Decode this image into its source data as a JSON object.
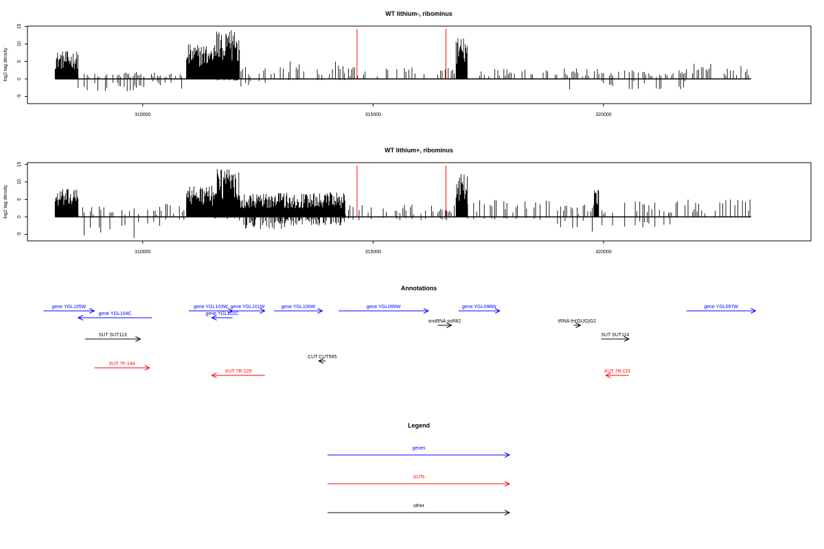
{
  "chart_data": [
    {
      "type": "bar",
      "title": "WT lithium-, ribominus",
      "xlabel": "",
      "ylabel": "log2 tag density",
      "xlim": [
        307500,
        324500
      ],
      "ylim": [
        -7,
        15
      ],
      "x_ticks": [
        "310000",
        "315000",
        "320000"
      ],
      "y_ticks": [
        "15",
        "10",
        "5",
        "0",
        "-5"
      ],
      "marker_positions": [
        314650,
        316580
      ],
      "marker_color": "#ff0000",
      "bar_color": "#000000",
      "density_regions": [
        {
          "start": 308100,
          "end": 308600,
          "max": 8.0,
          "min": 0
        },
        {
          "start": 308600,
          "end": 309600,
          "max": 1.5,
          "min": -4.0
        },
        {
          "start": 309600,
          "end": 310900,
          "max": 2.0,
          "min": -3.5
        },
        {
          "start": 310950,
          "end": 311550,
          "max": 10.0,
          "min": 0
        },
        {
          "start": 311550,
          "end": 312100,
          "max": 14.0,
          "min": -0.5
        },
        {
          "start": 312100,
          "end": 313100,
          "max": 3.5,
          "min": -3.0
        },
        {
          "start": 313100,
          "end": 314400,
          "max": 5.0,
          "min": -0.5
        },
        {
          "start": 314400,
          "end": 316800,
          "max": 3.5,
          "min": 0
        },
        {
          "start": 316800,
          "end": 317050,
          "max": 12.0,
          "min": 0
        },
        {
          "start": 317050,
          "end": 319700,
          "max": 3.0,
          "min": 0
        },
        {
          "start": 319100,
          "end": 319300,
          "max": 0.5,
          "min": -3.0
        },
        {
          "start": 319800,
          "end": 319900,
          "max": 5.0,
          "min": 0
        },
        {
          "start": 319900,
          "end": 321800,
          "max": 2.5,
          "min": -3.0
        },
        {
          "start": 321800,
          "end": 323200,
          "max": 4.5,
          "min": 0
        }
      ]
    },
    {
      "type": "bar",
      "title": "WT lithium+, ribominus",
      "xlabel": "",
      "ylabel": "log2 tag density",
      "xlim": [
        307500,
        324500
      ],
      "ylim": [
        -7,
        15
      ],
      "x_ticks": [
        "310000",
        "315000",
        "320000"
      ],
      "y_ticks": [
        "15",
        "10",
        "5",
        "0",
        "-5"
      ],
      "marker_positions": [
        314650,
        316580
      ],
      "marker_color": "#ff0000",
      "bar_color": "#000000",
      "density_regions": [
        {
          "start": 308100,
          "end": 308600,
          "max": 8.0,
          "min": 0
        },
        {
          "start": 308600,
          "end": 310500,
          "max": 3.0,
          "min": -6.0
        },
        {
          "start": 310500,
          "end": 310900,
          "max": 4.0,
          "min": -1.0
        },
        {
          "start": 310950,
          "end": 311550,
          "max": 9.0,
          "min": 0
        },
        {
          "start": 311550,
          "end": 312100,
          "max": 14.0,
          "min": -0.5
        },
        {
          "start": 312100,
          "end": 313100,
          "max": 7.0,
          "min": -3.5
        },
        {
          "start": 313100,
          "end": 314400,
          "max": 7.0,
          "min": -2.5
        },
        {
          "start": 314400,
          "end": 316800,
          "max": 3.5,
          "min": -1.0
        },
        {
          "start": 316800,
          "end": 317050,
          "max": 12.5,
          "min": 0
        },
        {
          "start": 317050,
          "end": 319000,
          "max": 5.0,
          "min": -1.0
        },
        {
          "start": 319000,
          "end": 319800,
          "max": 3.5,
          "min": -5.0
        },
        {
          "start": 319800,
          "end": 319900,
          "max": 8.0,
          "min": 0
        },
        {
          "start": 319900,
          "end": 321800,
          "max": 4.5,
          "min": -3.0
        },
        {
          "start": 321800,
          "end": 323200,
          "max": 5.0,
          "min": 0
        }
      ]
    },
    {
      "type": "annotation-track",
      "title": "Annotations",
      "xlim": [
        307500,
        324500
      ],
      "features": [
        {
          "label": "gene YGL105W",
          "start": 307850,
          "end": 308950,
          "strand": "+",
          "color": "#0000ff",
          "row": 0
        },
        {
          "label": "gene YGL104C",
          "start": 308600,
          "end": 310200,
          "strand": "-",
          "color": "#0000ff",
          "row": 1
        },
        {
          "label": "gene YGL103W",
          "start": 311000,
          "end": 311950,
          "strand": "+",
          "color": "#0000ff",
          "row": 0
        },
        {
          "label": "gene YGL102C",
          "start": 311500,
          "end": 311950,
          "strand": "-",
          "color": "#0000ff",
          "row": 1
        },
        {
          "label": "gene YGL101W",
          "start": 311900,
          "end": 312650,
          "strand": "+",
          "color": "#0000ff",
          "row": 0
        },
        {
          "label": "gene YGL100W",
          "start": 312850,
          "end": 313900,
          "strand": "+",
          "color": "#0000ff",
          "row": 0
        },
        {
          "label": "gene YGL099W",
          "start": 314250,
          "end": 316200,
          "strand": "+",
          "color": "#0000ff",
          "row": 0
        },
        {
          "label": "gene YGL098W",
          "start": 316850,
          "end": 317750,
          "strand": "+",
          "color": "#0000ff",
          "row": 0
        },
        {
          "label": "gene YGL097W",
          "start": 321800,
          "end": 323300,
          "strand": "+",
          "color": "#0000ff",
          "row": 0
        },
        {
          "label": "snoRNA snR82",
          "start": 316400,
          "end": 316700,
          "strand": "+",
          "color": "#000000",
          "row": 2
        },
        {
          "label": "tRNA tH(GUG)G2",
          "start": 319350,
          "end": 319500,
          "strand": "+",
          "color": "#000000",
          "row": 2
        },
        {
          "label": "SUT SUT113",
          "start": 308750,
          "end": 309950,
          "strand": "+",
          "color": "#000000",
          "row": 3
        },
        {
          "label": "SUT SUT114",
          "start": 319950,
          "end": 320550,
          "strand": "+",
          "color": "#000000",
          "row": 3
        },
        {
          "label": "CUT CUT595",
          "start": 313820,
          "end": 313970,
          "strand": "-",
          "color": "#000000",
          "row": 4
        },
        {
          "label": "XUT 7F-144",
          "start": 308950,
          "end": 310150,
          "strand": "+",
          "color": "#ff0000",
          "row": 5
        },
        {
          "label": "XUT 7R-129",
          "start": 311500,
          "end": 312650,
          "strand": "-",
          "color": "#ff0000",
          "row": 6
        },
        {
          "label": "XUT 7R-131",
          "start": 320050,
          "end": 320550,
          "strand": "-",
          "color": "#ff0000",
          "row": 6
        }
      ]
    },
    {
      "type": "legend",
      "title": "Legend",
      "entries": [
        {
          "label": "genes",
          "color": "#0000ff"
        },
        {
          "label": "XUTs",
          "color": "#ff0000"
        },
        {
          "label": "other",
          "color": "#000000"
        }
      ]
    }
  ]
}
